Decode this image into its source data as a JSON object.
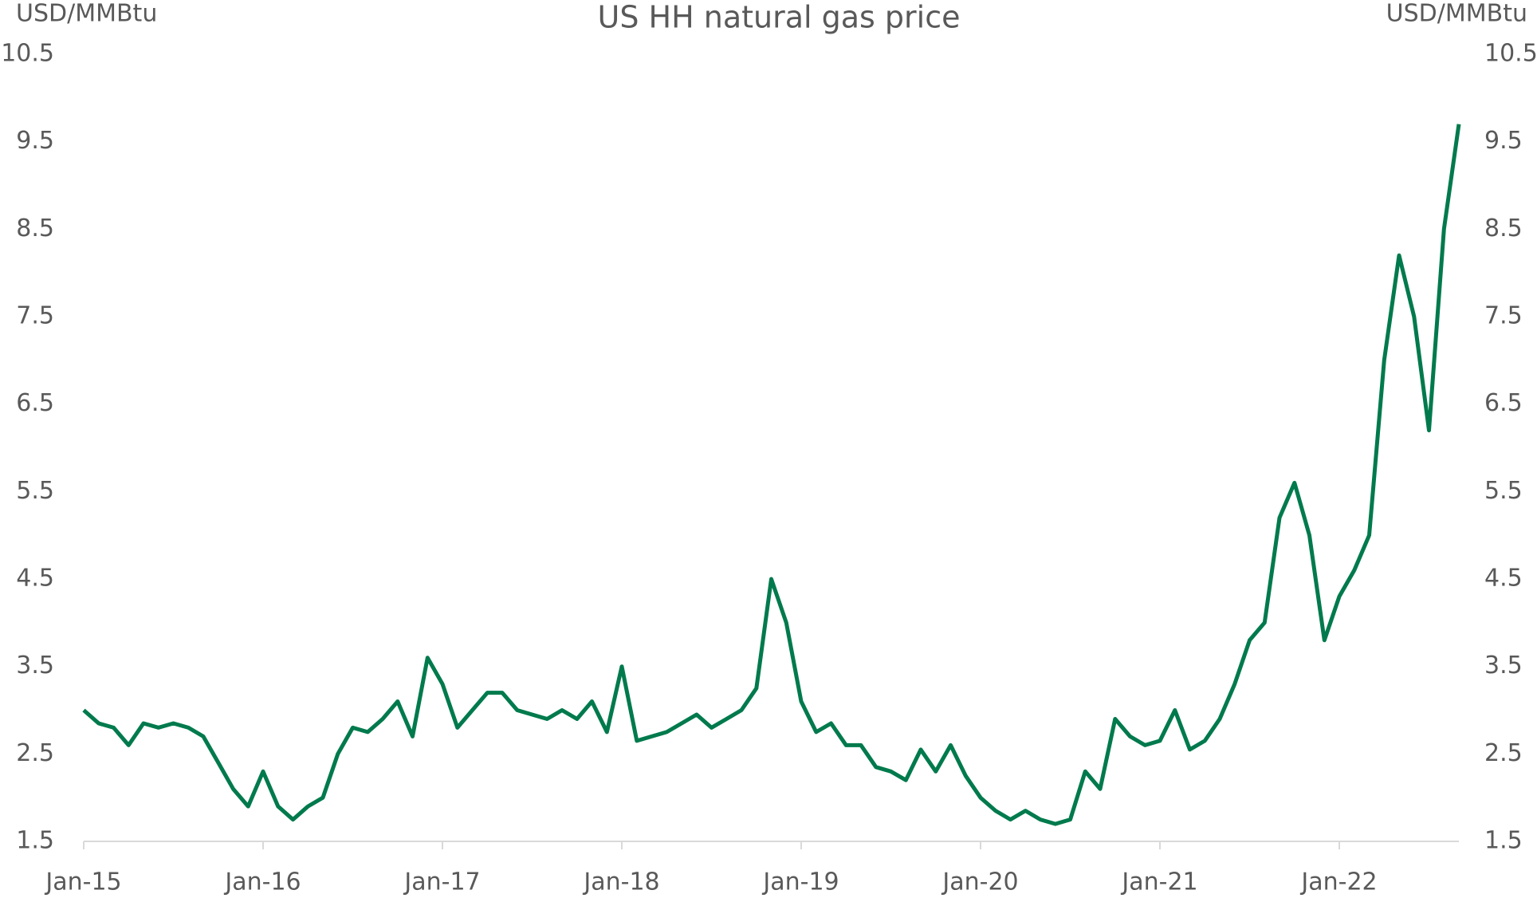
{
  "chart_data": {
    "type": "line",
    "title": "US HH natural gas price",
    "ylabel": "USD/MMBtu",
    "y2label": "USD/MMBtu",
    "x": [
      "2015-01",
      "2015-02",
      "2015-03",
      "2015-04",
      "2015-05",
      "2015-06",
      "2015-07",
      "2015-08",
      "2015-09",
      "2015-10",
      "2015-11",
      "2015-12",
      "2016-01",
      "2016-02",
      "2016-03",
      "2016-04",
      "2016-05",
      "2016-06",
      "2016-07",
      "2016-08",
      "2016-09",
      "2016-10",
      "2016-11",
      "2016-12",
      "2017-01",
      "2017-02",
      "2017-03",
      "2017-04",
      "2017-05",
      "2017-06",
      "2017-07",
      "2017-08",
      "2017-09",
      "2017-10",
      "2017-11",
      "2017-12",
      "2018-01",
      "2018-02",
      "2018-03",
      "2018-04",
      "2018-05",
      "2018-06",
      "2018-07",
      "2018-08",
      "2018-09",
      "2018-10",
      "2018-11",
      "2018-12",
      "2019-01",
      "2019-02",
      "2019-03",
      "2019-04",
      "2019-05",
      "2019-06",
      "2019-07",
      "2019-08",
      "2019-09",
      "2019-10",
      "2019-11",
      "2019-12",
      "2020-01",
      "2020-02",
      "2020-03",
      "2020-04",
      "2020-05",
      "2020-06",
      "2020-07",
      "2020-08",
      "2020-09",
      "2020-10",
      "2020-11",
      "2020-12",
      "2021-01",
      "2021-02",
      "2021-03",
      "2021-04",
      "2021-05",
      "2021-06",
      "2021-07",
      "2021-08",
      "2021-09",
      "2021-10",
      "2021-11",
      "2021-12",
      "2022-01",
      "2022-02",
      "2022-03",
      "2022-04",
      "2022-05",
      "2022-06",
      "2022-07",
      "2022-08",
      "2022-09"
    ],
    "series": [
      {
        "name": "US HH natural gas price",
        "color": "#007a4d",
        "values": [
          3.0,
          2.85,
          2.8,
          2.6,
          2.85,
          2.8,
          2.85,
          2.8,
          2.7,
          2.4,
          2.1,
          1.9,
          2.3,
          1.9,
          1.75,
          1.9,
          2.0,
          2.5,
          2.8,
          2.75,
          2.9,
          3.1,
          2.7,
          3.6,
          3.3,
          2.8,
          3.0,
          3.2,
          3.2,
          3.0,
          2.95,
          2.9,
          3.0,
          2.9,
          3.1,
          2.75,
          3.5,
          2.65,
          2.7,
          2.75,
          2.85,
          2.95,
          2.8,
          2.9,
          3.0,
          3.25,
          4.5,
          4.0,
          3.1,
          2.75,
          2.85,
          2.6,
          2.6,
          2.35,
          2.3,
          2.2,
          2.55,
          2.3,
          2.6,
          2.25,
          2.0,
          1.85,
          1.75,
          1.85,
          1.75,
          1.7,
          1.75,
          2.3,
          2.1,
          2.9,
          2.7,
          2.6,
          2.65,
          3.0,
          2.55,
          2.65,
          2.9,
          3.3,
          3.8,
          4.0,
          5.2,
          5.6,
          5.0,
          3.8,
          4.3,
          4.6,
          5.0,
          7.0,
          8.2,
          7.5,
          6.2,
          8.5,
          9.7
        ]
      }
    ],
    "xlim": [
      "2015-01",
      "2022-09"
    ],
    "xticks": [
      {
        "value": "2015-01",
        "label": "Jan-15"
      },
      {
        "value": "2016-01",
        "label": "Jan-16"
      },
      {
        "value": "2017-01",
        "label": "Jan-17"
      },
      {
        "value": "2018-01",
        "label": "Jan-18"
      },
      {
        "value": "2019-01",
        "label": "Jan-19"
      },
      {
        "value": "2020-01",
        "label": "Jan-20"
      },
      {
        "value": "2021-01",
        "label": "Jan-21"
      },
      {
        "value": "2022-01",
        "label": "Jan-22"
      }
    ],
    "ylim": [
      1.5,
      10.5
    ],
    "yticks": [
      1.5,
      2.5,
      3.5,
      4.5,
      5.5,
      6.5,
      7.5,
      8.5,
      9.5,
      10.5
    ],
    "y2lim": [
      1.5,
      10.5
    ],
    "y2ticks": [
      1.5,
      2.5,
      3.5,
      4.5,
      5.5,
      6.5,
      7.5,
      8.5,
      9.5,
      10.5
    ],
    "grid": false
  }
}
